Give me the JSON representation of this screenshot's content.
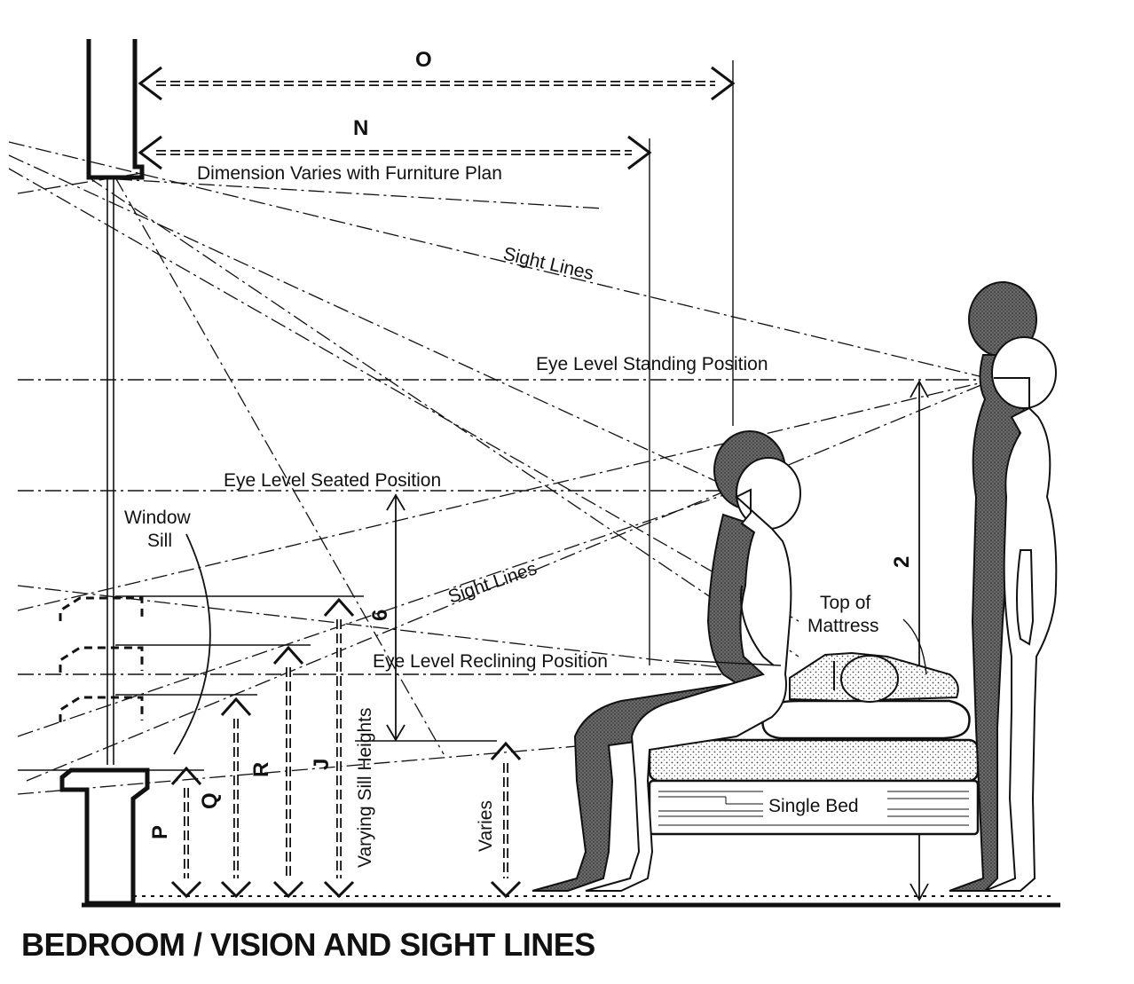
{
  "title": "BEDROOM / VISION AND SIGHT LINES",
  "labels": {
    "dim_o": "O",
    "dim_n": "N",
    "dimension_varies": "Dimension Varies with Furniture Plan",
    "sight_lines_upper": "Sight Lines",
    "sight_lines_lower": "Sight Lines",
    "eye_level_standing": "Eye Level Standing Position",
    "eye_level_seated": "Eye Level Seated Position",
    "eye_level_reclining": "Eye Level Reclining Position",
    "window": "Window",
    "sill": "Sill",
    "top_of": "Top of",
    "mattress": "Mattress",
    "single_bed": "Single Bed",
    "varying_sill_heights": "Varying Sill Heights",
    "varies": "Varies",
    "dim_p": "P",
    "dim_q": "Q",
    "dim_r": "R",
    "dim_j": "J",
    "dim_6": "6",
    "dim_2": "2"
  },
  "colors": {
    "ink": "#111111",
    "figure_dark": "#5a5a5a",
    "figure_light": "#ffffff",
    "stipple": "#cfcfcf"
  }
}
